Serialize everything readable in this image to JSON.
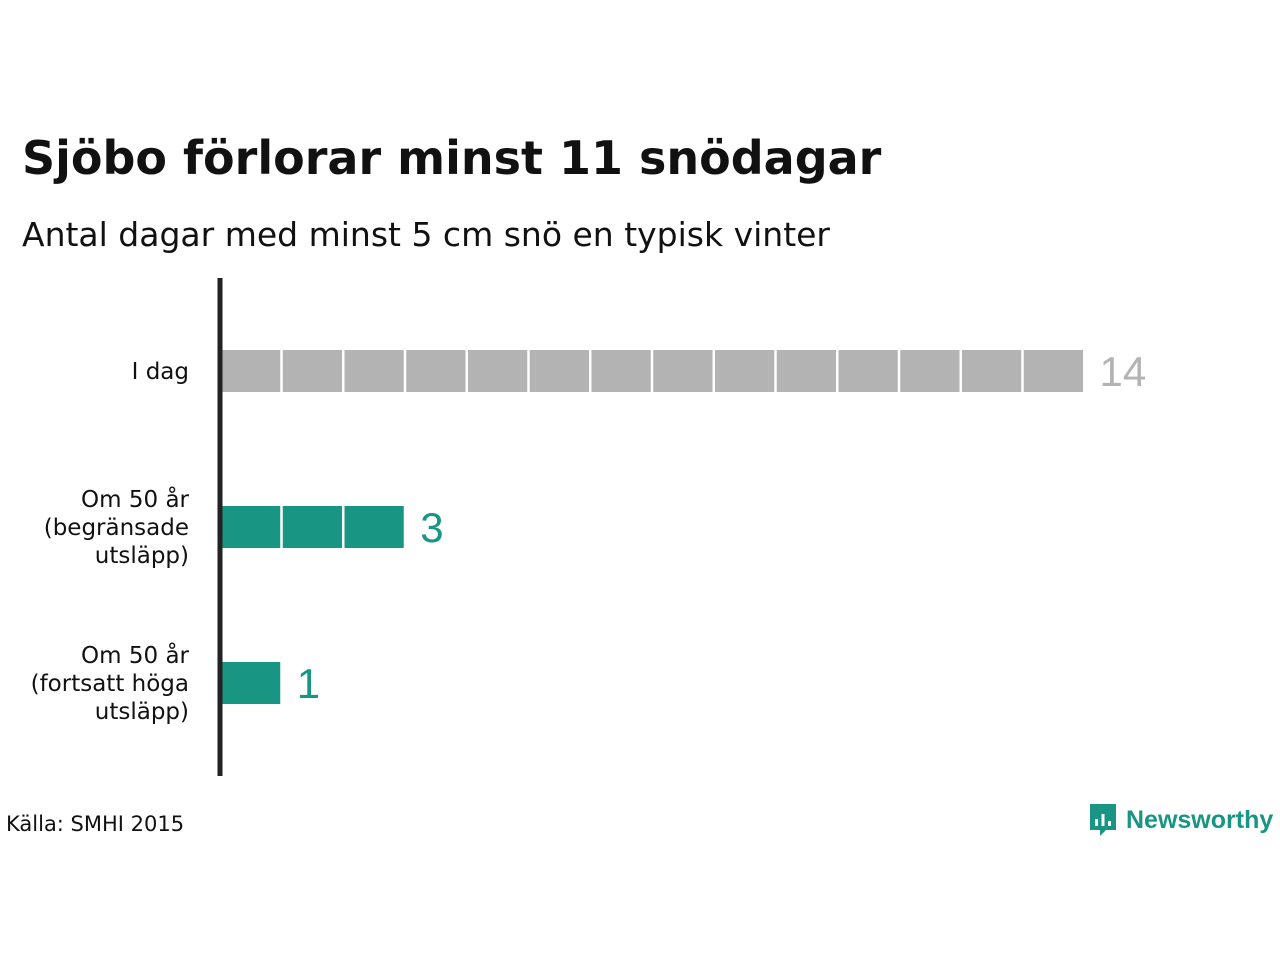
{
  "header": {
    "title": "Sjöbo förlorar minst 11 snödagar",
    "subtitle": "Antal dagar med minst 5 cm snö en typisk vinter"
  },
  "footer": {
    "source": "Källa: SMHI 2015",
    "brand": "Newsworthy"
  },
  "colors": {
    "today": "#b3b3b3",
    "future": "#199584",
    "axis": "#222222",
    "brand": "#199584"
  },
  "chart_data": {
    "type": "bar",
    "orientation": "horizontal",
    "style": "unit-blocks",
    "title": "Sjöbo förlorar minst 11 snödagar",
    "subtitle": "Antal dagar med minst 5 cm snö en typisk vinter",
    "categories": [
      [
        "I dag"
      ],
      [
        "Om 50 år",
        "(begränsade",
        "utsläpp)"
      ],
      [
        "Om 50 år",
        "(fortsatt höga",
        "utsläpp)"
      ]
    ],
    "values": [
      14,
      3,
      1
    ],
    "value_labels": [
      "14",
      "3",
      "1"
    ],
    "bar_colors": [
      "#b3b3b3",
      "#199584",
      "#199584"
    ],
    "xlim": [
      0,
      14
    ],
    "grid": false,
    "legend": "none"
  }
}
